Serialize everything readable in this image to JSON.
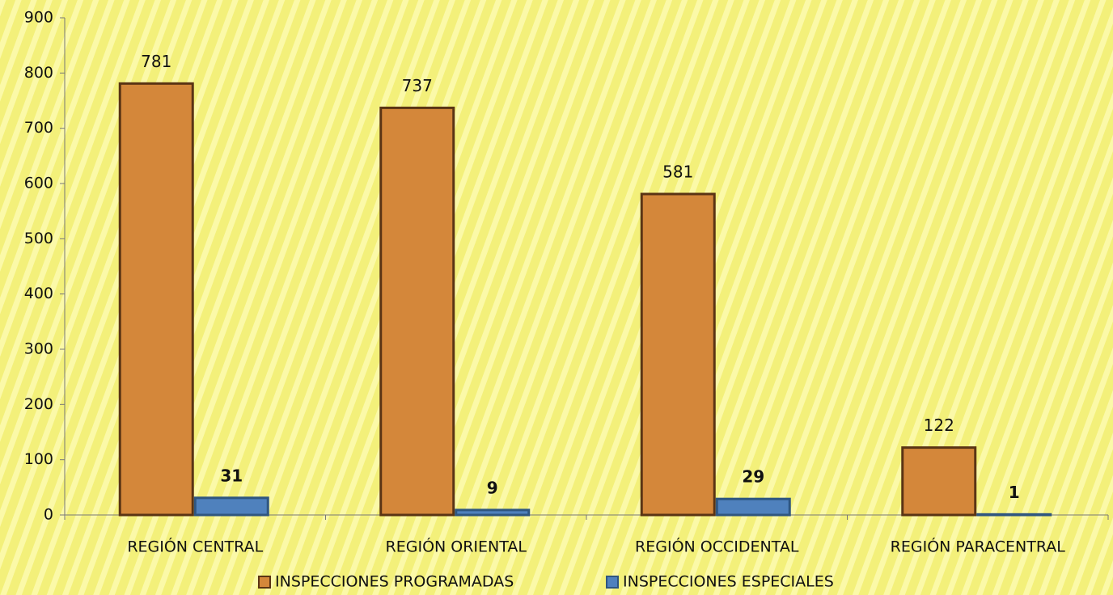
{
  "chart_data": {
    "type": "bar",
    "categories": [
      "REGIÓN CENTRAL",
      "REGIÓN ORIENTAL",
      "REGIÓN OCCIDENTAL",
      "REGIÓN PARACENTRAL"
    ],
    "series": [
      {
        "name": "INSPECCIONES PROGRAMADAS",
        "color": "#d4873a",
        "values": [
          781,
          737,
          581,
          122
        ]
      },
      {
        "name": "INSPECCIONES ESPECIALES",
        "color": "#4f81bd",
        "values": [
          31,
          9,
          29,
          1
        ]
      }
    ],
    "ylim": [
      0,
      900
    ],
    "yticks": [
      0,
      100,
      200,
      300,
      400,
      500,
      600,
      700,
      800,
      900
    ],
    "legend": "bottom"
  }
}
